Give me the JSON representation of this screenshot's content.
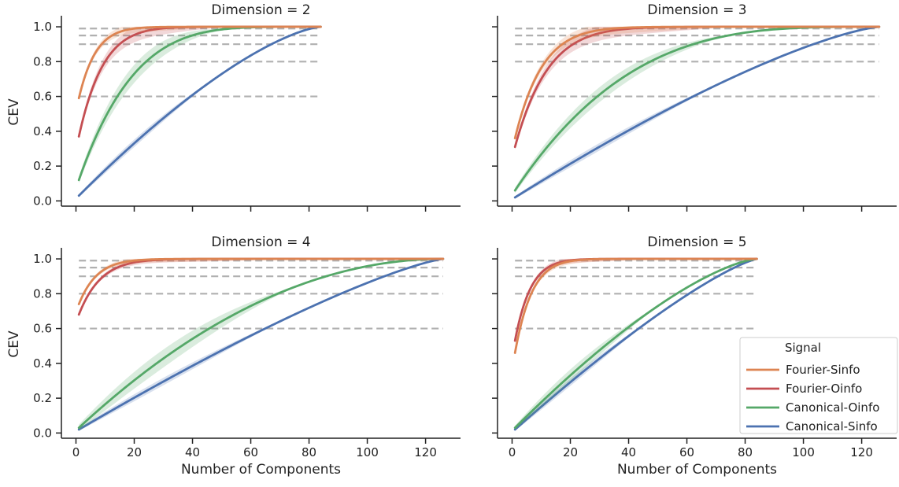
{
  "figure": {
    "ylabel": "CEV",
    "xlabel": "Number of Components",
    "legend": {
      "title": "Signal",
      "placement": "lower-right",
      "entries": [
        {
          "label": "Fourier-Sinfo",
          "color": "#dd8452"
        },
        {
          "label": "Fourier-Oinfo",
          "color": "#c44e52"
        },
        {
          "label": "Canonical-Oinfo",
          "color": "#55a868"
        },
        {
          "label": "Canonical-Sinfo",
          "color": "#4c72b0"
        }
      ]
    },
    "threshold_color": "#b0b0b0",
    "y_ticks": [
      "0.0",
      "0.2",
      "0.4",
      "0.6",
      "0.8",
      "1.0"
    ],
    "x_ticks": [
      "0",
      "20",
      "40",
      "60",
      "80",
      "100",
      "120"
    ]
  },
  "chart_data": [
    {
      "type": "line",
      "title": "Dimension = 2",
      "xlim": [
        -5,
        132
      ],
      "ylim": [
        -0.03,
        1.05
      ],
      "thresholds": [
        0.6,
        0.8,
        0.9,
        0.95,
        0.99
      ],
      "threshold_xmax": 84,
      "series": [
        {
          "name": "Canonical-Sinfo",
          "xmax": 84,
          "y0": 0.03,
          "k": 0.7,
          "band": 0.025
        },
        {
          "name": "Canonical-Oinfo",
          "xmax": 84,
          "y0": 0.12,
          "k": 0.22,
          "band": 0.06
        },
        {
          "name": "Fourier-Oinfo",
          "xmax": 84,
          "y0": 0.37,
          "k": 0.1,
          "band": 0.05
        },
        {
          "name": "Fourier-Sinfo",
          "xmax": 84,
          "y0": 0.59,
          "k": 0.07,
          "band": 0.03
        }
      ]
    },
    {
      "type": "line",
      "title": "Dimension = 3",
      "xlim": [
        -5,
        132
      ],
      "ylim": [
        -0.03,
        1.05
      ],
      "thresholds": [
        0.6,
        0.8,
        0.9,
        0.95,
        0.99
      ],
      "threshold_xmax": 126,
      "series": [
        {
          "name": "Canonical-Sinfo",
          "xmax": 126,
          "y0": 0.02,
          "k": 0.75,
          "band": 0.025
        },
        {
          "name": "Canonical-Oinfo",
          "xmax": 126,
          "y0": 0.06,
          "k": 0.3,
          "band": 0.05
        },
        {
          "name": "Fourier-Oinfo",
          "xmax": 126,
          "y0": 0.31,
          "k": 0.09,
          "band": 0.05
        },
        {
          "name": "Fourier-Sinfo",
          "xmax": 126,
          "y0": 0.36,
          "k": 0.075,
          "band": 0.04
        }
      ]
    },
    {
      "type": "line",
      "title": "Dimension = 4",
      "xlim": [
        -5,
        132
      ],
      "ylim": [
        -0.03,
        1.05
      ],
      "thresholds": [
        0.6,
        0.8,
        0.9,
        0.95,
        0.99
      ],
      "threshold_xmax": 126,
      "series": [
        {
          "name": "Canonical-Sinfo",
          "xmax": 126,
          "y0": 0.02,
          "k": 0.8,
          "band": 0.025
        },
        {
          "name": "Canonical-Oinfo",
          "xmax": 126,
          "y0": 0.03,
          "k": 0.5,
          "band": 0.06
        },
        {
          "name": "Fourier-Oinfo",
          "xmax": 126,
          "y0": 0.68,
          "k": 0.06,
          "band": 0.02
        },
        {
          "name": "Fourier-Sinfo",
          "xmax": 126,
          "y0": 0.74,
          "k": 0.05,
          "band": 0.02
        }
      ]
    },
    {
      "type": "line",
      "title": "Dimension = 5",
      "xlim": [
        -5,
        132
      ],
      "ylim": [
        -0.03,
        1.05
      ],
      "thresholds": [
        0.6,
        0.8,
        0.9,
        0.95,
        0.99
      ],
      "threshold_xmax": 84,
      "series": [
        {
          "name": "Canonical-Sinfo",
          "xmax": 84,
          "y0": 0.02,
          "k": 0.8,
          "band": 0.025
        },
        {
          "name": "Canonical-Oinfo",
          "xmax": 84,
          "y0": 0.03,
          "k": 0.7,
          "band": 0.04
        },
        {
          "name": "Fourier-Oinfo",
          "xmax": 84,
          "y0": 0.53,
          "k": 0.065,
          "band": 0.02
        },
        {
          "name": "Fourier-Sinfo",
          "xmax": 84,
          "y0": 0.46,
          "k": 0.07,
          "band": 0.02
        }
      ]
    }
  ]
}
